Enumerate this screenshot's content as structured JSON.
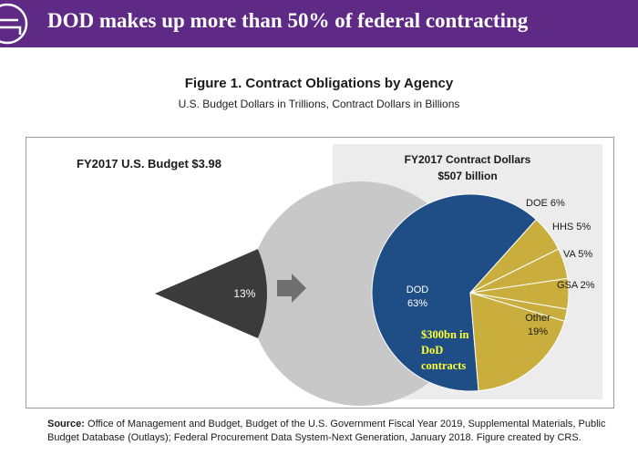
{
  "banner": {
    "title": "DOD makes up more than 50% of federal contracting"
  },
  "figure": {
    "title": "Figure 1. Contract Obligations by Agency",
    "subtitle": "U.S. Budget Dollars in Trillions, Contract Dollars in Billions"
  },
  "chart_data": [
    {
      "type": "pie",
      "title": "FY2017 U.S. Budget $3.98",
      "slices": [
        {
          "label": "",
          "value": 87
        },
        {
          "label": "13%",
          "value": 13
        }
      ],
      "colors": [
        "#c8c8c8",
        "#3b3b3b"
      ]
    },
    {
      "type": "pie",
      "title": "FY2017 Contract Dollars",
      "subtitle": "$507 billion",
      "slices": [
        {
          "label": "DOD",
          "pct_label": "63%",
          "value": 63
        },
        {
          "label": "Other",
          "pct_label": "19%",
          "value": 19
        },
        {
          "label": "GSA",
          "pct_label": "2%",
          "value": 2
        },
        {
          "label": "VA",
          "pct_label": "5%",
          "value": 5
        },
        {
          "label": "HHS",
          "pct_label": "5%",
          "value": 5
        },
        {
          "label": "DOE",
          "pct_label": "6%",
          "value": 6
        }
      ],
      "colors": {
        "dod": "#1f4e87",
        "others": "#c9ae3e"
      },
      "annotation": [
        "$300bn in",
        "DoD",
        "contracts"
      ],
      "annotation_color": "#ffff33"
    }
  ],
  "source": {
    "lead": "Source:",
    "text": " Office of Management and Budget, Budget of the U.S. Government Fiscal Year 2019, Supplemental Materials, Public Budget Database (Outlays); Federal Procurement Data System-Next Generation, January 2018. Figure created by CRS."
  }
}
